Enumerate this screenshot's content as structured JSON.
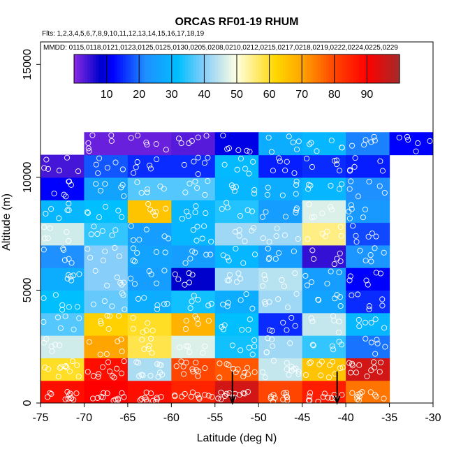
{
  "chart_data": {
    "type": "heatmap",
    "title": "ORCAS RF01-19 RHUM",
    "flights_line": "Flts: 1,2,3,4,5,6,7,8,9,10,11,12,13,14,15,16,17,18,19",
    "mmdd_line": "MMDD: 0115,0118,0121,0123,0125,0125,0130,0205,0208,0210,0212,0215,0217,0218,0219,0222,0224,0225,0229",
    "xlabel": "Latitude (deg N)",
    "ylabel": "Altitude (m)",
    "xlim": [
      -75,
      -30
    ],
    "ylim": [
      0,
      16000
    ],
    "x_ticks": [
      -75,
      -70,
      -65,
      -60,
      -55,
      -50,
      -45,
      -40,
      -35,
      -30
    ],
    "y_ticks": [
      0,
      5000,
      10000,
      15000
    ],
    "lat_edges": [
      -75,
      -70,
      -65,
      -60,
      -55,
      -50,
      -45,
      -40,
      -35,
      -30
    ],
    "alt_edges": [
      0,
      1000,
      2000,
      3000,
      4000,
      5000,
      6000,
      7000,
      8000,
      9000,
      10000,
      11000,
      12000
    ],
    "cells": [
      [
        88,
        90,
        88,
        85,
        95,
        80,
        86,
        75,
        null
      ],
      [
        60,
        88,
        43,
        80,
        78,
        45,
        65,
        95,
        null
      ],
      [
        46,
        70,
        58,
        47,
        33,
        42,
        35,
        20,
        null
      ],
      [
        37,
        63,
        60,
        68,
        32,
        15,
        45,
        30,
        null
      ],
      [
        32,
        38,
        28,
        33,
        28,
        42,
        26,
        15,
        null
      ],
      [
        28,
        40,
        25,
        8,
        42,
        44,
        25,
        12,
        null
      ],
      [
        22,
        40,
        26,
        25,
        30,
        25,
        5,
        23,
        null
      ],
      [
        46,
        35,
        25,
        30,
        42,
        42,
        55,
        17,
        null
      ],
      [
        30,
        32,
        65,
        30,
        34,
        25,
        47,
        24,
        null
      ],
      [
        12,
        26,
        37,
        37,
        30,
        28,
        30,
        22,
        null
      ],
      [
        4,
        18,
        15,
        15,
        31,
        14,
        15,
        14,
        null
      ],
      [
        null,
        2,
        2,
        3,
        10,
        28,
        30,
        21,
        12
      ]
    ],
    "colorbar": {
      "range": [
        0,
        100
      ],
      "ticks": [
        10,
        20,
        30,
        40,
        50,
        60,
        70,
        80,
        90
      ],
      "colors": [
        "#8a2be2",
        "#0000cd",
        "#0000ff",
        "#1e90ff",
        "#00bfff",
        "#87cefa",
        "#ffffe0",
        "#ffd700",
        "#ffa500",
        "#ff4500",
        "#ff0000",
        "#a52a2a"
      ],
      "color_positions": [
        0,
        8,
        12,
        22,
        32,
        40,
        50,
        62,
        70,
        80,
        90,
        100
      ]
    },
    "arrows_at_latitude": [
      -53,
      -41
    ],
    "marker_color": "#ffffff",
    "frame_color": "#000000"
  }
}
